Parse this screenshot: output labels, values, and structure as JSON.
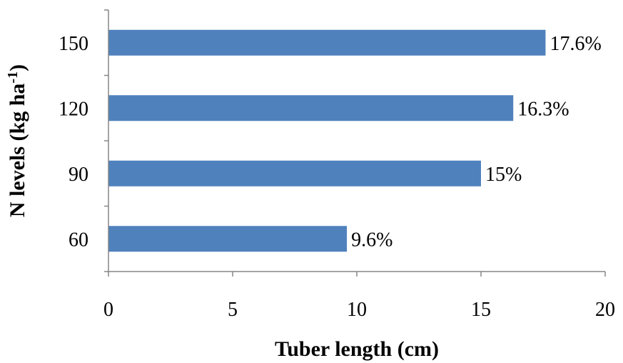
{
  "chart_data": {
    "type": "bar",
    "orientation": "horizontal",
    "categories": [
      "60",
      "90",
      "120",
      "150"
    ],
    "values": [
      9.6,
      15,
      16.3,
      17.6
    ],
    "data_labels": [
      "9.6%",
      "15%",
      "16.3%",
      "17.6%"
    ],
    "x_ticks": [
      "0",
      "5",
      "10",
      "15",
      "20"
    ],
    "xlim": [
      0,
      20
    ],
    "xlabel": "Tuber length (cm)",
    "ylabel_main": "N levels (kg ha",
    "ylabel_sup": "-1",
    "ylabel_end": ")",
    "grid": false,
    "legend": "none",
    "colors": {
      "bar": "#4f81bd",
      "axis": "#868686"
    }
  }
}
